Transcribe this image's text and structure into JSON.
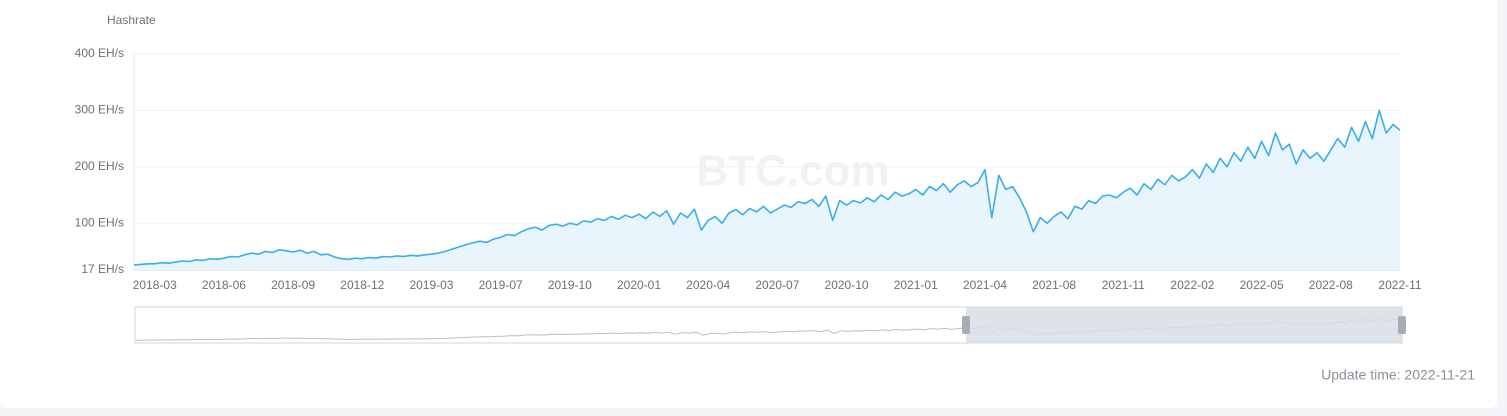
{
  "chart_data": {
    "type": "line",
    "y_axis_name": "Hashrate",
    "watermark": "BTC.com",
    "footnote": "Update time: 2022-11-21",
    "categories": [
      null,
      null,
      null,
      "2018-03",
      null,
      null,
      null,
      null,
      null,
      null,
      null,
      null,
      null,
      "2018-06",
      null,
      null,
      null,
      null,
      null,
      null,
      null,
      null,
      null,
      "2018-09",
      null,
      null,
      null,
      null,
      null,
      null,
      null,
      null,
      null,
      "2018-12",
      null,
      null,
      null,
      null,
      null,
      null,
      null,
      null,
      null,
      "2019-03",
      null,
      null,
      null,
      null,
      null,
      null,
      null,
      null,
      null,
      "2019-07",
      null,
      null,
      null,
      null,
      null,
      null,
      null,
      null,
      null,
      "2019-10",
      null,
      null,
      null,
      null,
      null,
      null,
      null,
      null,
      null,
      "2020-01",
      null,
      null,
      null,
      null,
      null,
      null,
      null,
      null,
      null,
      "2020-04",
      null,
      null,
      null,
      null,
      null,
      null,
      null,
      null,
      null,
      "2020-07",
      null,
      null,
      null,
      null,
      null,
      null,
      null,
      null,
      null,
      "2020-10",
      null,
      null,
      null,
      null,
      null,
      null,
      null,
      null,
      null,
      "2021-01",
      null,
      null,
      null,
      null,
      null,
      null,
      null,
      null,
      null,
      "2021-04",
      null,
      null,
      null,
      null,
      null,
      null,
      null,
      null,
      null,
      "2021-08",
      null,
      null,
      null,
      null,
      null,
      null,
      null,
      null,
      null,
      "2021-11",
      null,
      null,
      null,
      null,
      null,
      null,
      null,
      null,
      null,
      "2022-02",
      null,
      null,
      null,
      null,
      null,
      null,
      null,
      null,
      null,
      "2022-05",
      null,
      null,
      null,
      null,
      null,
      null,
      null,
      null,
      null,
      "2022-08",
      null,
      null,
      null,
      null,
      null,
      null,
      null,
      null,
      null,
      "2022-11"
    ],
    "series": [
      {
        "color": "#3aaeea",
        "area_color": "#e8f5fc",
        "values": [
          26,
          27,
          28,
          28,
          30,
          29,
          31,
          33,
          32,
          35,
          34,
          37,
          36,
          38,
          41,
          40,
          44,
          47,
          45,
          50,
          48,
          53,
          51,
          49,
          52,
          47,
          50,
          44,
          45,
          40,
          37,
          36,
          38,
          37,
          39,
          38,
          41,
          40,
          42,
          41,
          43,
          42,
          44,
          45,
          47,
          50,
          54,
          58,
          62,
          65,
          68,
          66,
          72,
          75,
          80,
          78,
          85,
          90,
          93,
          88,
          96,
          98,
          95,
          100,
          97,
          104,
          102,
          108,
          105,
          112,
          107,
          114,
          110,
          116,
          108,
          120,
          112,
          122,
          98,
          118,
          110,
          125,
          88,
          105,
          112,
          100,
          118,
          124,
          115,
          126,
          120,
          130,
          118,
          125,
          132,
          128,
          138,
          135,
          142,
          130,
          148,
          105,
          140,
          132,
          140,
          136,
          145,
          138,
          150,
          142,
          155,
          148,
          152,
          160,
          150,
          165,
          158,
          170,
          155,
          168,
          175,
          165,
          172,
          195,
          110,
          185,
          160,
          165,
          145,
          120,
          85,
          110,
          100,
          112,
          120,
          108,
          130,
          125,
          140,
          135,
          148,
          150,
          145,
          155,
          162,
          150,
          170,
          160,
          178,
          168,
          185,
          175,
          182,
          195,
          180,
          205,
          190,
          215,
          200,
          225,
          210,
          235,
          215,
          245,
          220,
          260,
          230,
          240,
          205,
          230,
          215,
          225,
          210,
          230,
          250,
          235,
          270,
          245,
          280,
          250,
          300,
          260,
          275,
          265
        ]
      }
    ],
    "ylim": [
      17,
      400
    ],
    "yticks": [
      {
        "value": 17,
        "label": "17 EH/s"
      },
      {
        "value": 100,
        "label": "100 EH/s"
      },
      {
        "value": 200,
        "label": "200 EH/s"
      },
      {
        "value": 300,
        "label": "300 EH/s"
      },
      {
        "value": 400,
        "label": "400 EH/s"
      }
    ],
    "grid": true
  }
}
